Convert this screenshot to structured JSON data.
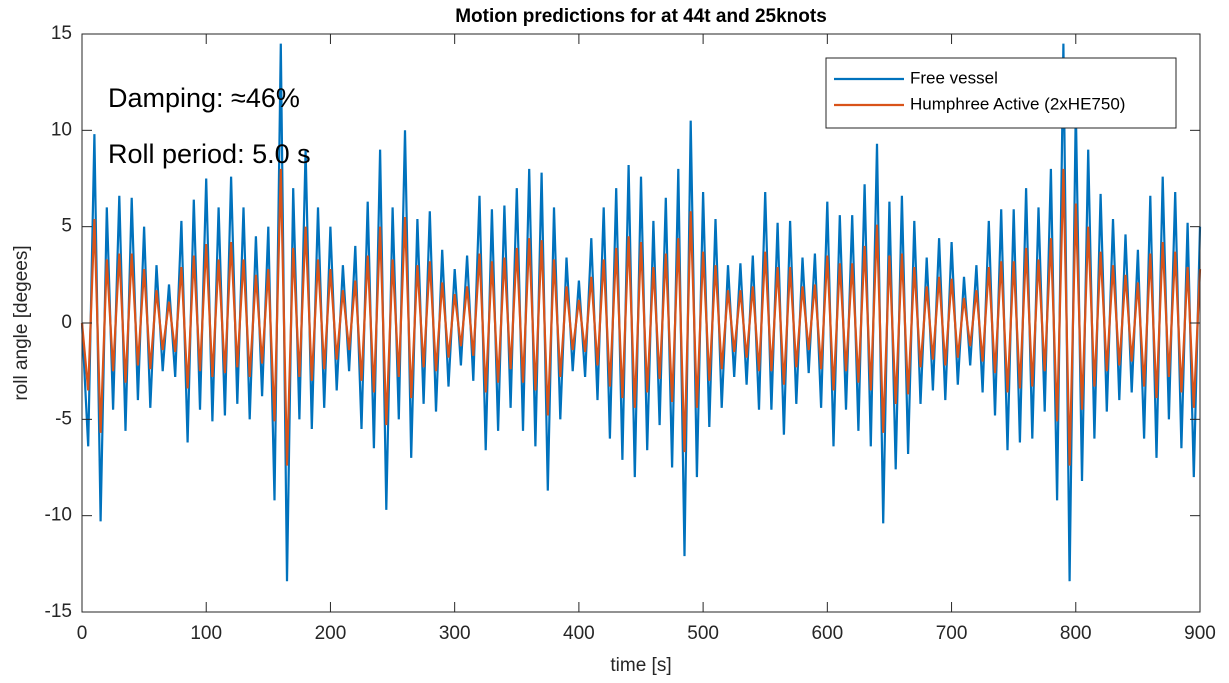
{
  "chart_data": {
    "type": "line",
    "title": "Motion predictions for  at 44t and 25knots",
    "xlabel": "time [s]",
    "ylabel": "roll angle [degees]",
    "annotations": [
      "Damping: ≈46%",
      "Roll period: 5.0 s"
    ],
    "legend": "northeast",
    "grid": false,
    "xlim": [
      0,
      900
    ],
    "xticks": [
      0,
      100,
      200,
      300,
      400,
      500,
      600,
      700,
      800,
      900
    ],
    "ylim": [
      -15,
      15
    ],
    "yticks": [
      -15,
      -10,
      -5,
      0,
      5,
      10,
      15
    ],
    "x": [
      0,
      5,
      10,
      15,
      20,
      25,
      30,
      35,
      40,
      45,
      50,
      55,
      60,
      65,
      70,
      75,
      80,
      85,
      90,
      95,
      100,
      105,
      110,
      115,
      120,
      125,
      130,
      135,
      140,
      145,
      150,
      155,
      160,
      165,
      170,
      175,
      180,
      185,
      190,
      195,
      200,
      205,
      210,
      215,
      220,
      225,
      230,
      235,
      240,
      245,
      250,
      255,
      260,
      265,
      270,
      275,
      280,
      285,
      290,
      295,
      300,
      305,
      310,
      315,
      320,
      325,
      330,
      335,
      340,
      345,
      350,
      355,
      360,
      365,
      370,
      375,
      380,
      385,
      390,
      395,
      400,
      405,
      410,
      415,
      420,
      425,
      430,
      435,
      440,
      445,
      450,
      455,
      460,
      465,
      470,
      475,
      480,
      485,
      490,
      495,
      500,
      505,
      510,
      515,
      520,
      525,
      530,
      535,
      540,
      545,
      550,
      555,
      560,
      565,
      570,
      575,
      580,
      585,
      590,
      595,
      600,
      605,
      610,
      615,
      620,
      625,
      630,
      635,
      640,
      645,
      650,
      655,
      660,
      665,
      670,
      675,
      680,
      685,
      690,
      695,
      700,
      705,
      710,
      715,
      720,
      725,
      730,
      735,
      740,
      745,
      750,
      755,
      760,
      765,
      770,
      775,
      780,
      785,
      790,
      795,
      800,
      805,
      810,
      815,
      820,
      825,
      830,
      835,
      840,
      845,
      850,
      855,
      860,
      865,
      870,
      875,
      880,
      885,
      890,
      895,
      900
    ],
    "series": [
      {
        "name": "Free vessel",
        "color": "#0072BD",
        "values": [
          0,
          -6.4,
          9.8,
          -10.3,
          6.0,
          -4.5,
          6.6,
          -5.6,
          6.5,
          -4.0,
          5.0,
          -4.4,
          3.0,
          -2.5,
          2.0,
          -2.8,
          5.3,
          -6.2,
          6.4,
          -4.5,
          7.5,
          -5.1,
          6.0,
          -4.8,
          7.6,
          -4.2,
          6.0,
          -5.0,
          4.5,
          -3.8,
          5.0,
          -9.2,
          14.5,
          -13.4,
          7.0,
          -5.0,
          9.0,
          -5.5,
          6.0,
          -4.4,
          5.0,
          -3.5,
          3.0,
          -2.5,
          4.0,
          -5.5,
          6.3,
          -6.5,
          9.0,
          -9.7,
          6.0,
          -5.0,
          10.0,
          -7.0,
          5.4,
          -4.2,
          5.8,
          -4.6,
          3.8,
          -3.3,
          2.8,
          -2.2,
          3.5,
          -3.0,
          6.6,
          -6.6,
          5.9,
          -5.6,
          6.1,
          -4.4,
          7.0,
          -5.6,
          8.0,
          -6.4,
          7.8,
          -8.7,
          6.0,
          -5.0,
          3.4,
          -2.5,
          2.2,
          -2.8,
          4.4,
          -4.0,
          6.0,
          -6.0,
          7.0,
          -7.1,
          8.2,
          -8.0,
          7.6,
          -6.6,
          5.3,
          -5.3,
          6.5,
          -7.5,
          8.0,
          -12.1,
          10.5,
          -8.0,
          6.8,
          -5.4,
          5.4,
          -4.4,
          3.0,
          -2.8,
          3.1,
          -3.2,
          3.5,
          -4.5,
          6.8,
          -4.5,
          5.2,
          -5.8,
          5.3,
          -4.2,
          3.4,
          -2.6,
          3.6,
          -4.4,
          6.3,
          -6.4,
          5.6,
          -4.5,
          5.6,
          -5.6,
          7.2,
          -6.4,
          9.3,
          -10.4,
          6.3,
          -7.6,
          6.6,
          -6.8,
          5.3,
          -4.2,
          3.4,
          -3.5,
          4.4,
          -4.0,
          4.2,
          -3.2,
          2.4,
          -2.2,
          3.0,
          -3.6,
          5.3,
          -4.8,
          5.9,
          -6.6,
          5.9,
          -6.2,
          7.0,
          -6.0,
          6.0,
          -4.6,
          8.0,
          -9.2,
          14.5,
          -13.4,
          11.2,
          -8.2,
          9.0,
          -6.0,
          6.7,
          -4.6,
          5.4,
          -4.0,
          4.6,
          -3.6,
          3.8,
          -6.0,
          6.6,
          -7.0,
          7.6,
          -5.0,
          6.8,
          -6.5,
          5.2,
          -8.0,
          5.0
        ]
      },
      {
        "name": "Humphree Active (2xHE750)",
        "color": "#D95319",
        "values": [
          0,
          -3.5,
          5.4,
          -5.7,
          3.3,
          -2.5,
          3.6,
          -3.1,
          3.6,
          -2.2,
          2.8,
          -2.4,
          1.7,
          -1.4,
          1.1,
          -1.5,
          2.9,
          -3.4,
          3.5,
          -2.5,
          4.1,
          -2.8,
          3.3,
          -2.6,
          4.2,
          -2.3,
          3.3,
          -2.8,
          2.5,
          -2.1,
          2.8,
          -5.1,
          8.0,
          -7.4,
          3.9,
          -2.8,
          5.0,
          -3.0,
          3.3,
          -2.4,
          2.8,
          -1.9,
          1.7,
          -1.4,
          2.2,
          -3.0,
          3.5,
          -3.6,
          5.0,
          -5.3,
          3.3,
          -2.8,
          5.5,
          -3.9,
          3.0,
          -2.3,
          3.2,
          -2.5,
          2.1,
          -1.8,
          1.5,
          -1.2,
          1.9,
          -1.7,
          3.6,
          -3.6,
          3.2,
          -3.1,
          3.4,
          -2.4,
          3.9,
          -3.1,
          4.4,
          -3.5,
          4.3,
          -4.8,
          3.3,
          -2.8,
          1.9,
          -1.4,
          1.2,
          -1.5,
          2.4,
          -2.2,
          3.3,
          -3.3,
          3.9,
          -3.9,
          4.5,
          -4.4,
          4.2,
          -3.6,
          2.9,
          -2.9,
          3.6,
          -4.1,
          4.4,
          -6.7,
          5.8,
          -4.4,
          3.7,
          -3.0,
          3.0,
          -2.4,
          1.7,
          -1.5,
          1.7,
          -1.8,
          1.9,
          -2.5,
          3.7,
          -2.5,
          2.9,
          -3.2,
          2.9,
          -2.3,
          1.9,
          -1.4,
          2.0,
          -2.4,
          3.5,
          -3.5,
          3.1,
          -2.5,
          3.1,
          -3.1,
          4.0,
          -3.5,
          5.1,
          -5.7,
          3.5,
          -4.2,
          3.6,
          -3.7,
          2.9,
          -2.3,
          1.9,
          -1.9,
          2.4,
          -2.2,
          2.3,
          -1.8,
          1.3,
          -1.2,
          1.7,
          -2.0,
          2.9,
          -2.6,
          3.2,
          -3.6,
          3.2,
          -3.4,
          3.9,
          -3.3,
          3.3,
          -2.5,
          4.4,
          -5.1,
          8.0,
          -7.4,
          6.2,
          -4.5,
          5.0,
          -3.3,
          3.7,
          -2.5,
          3.0,
          -2.2,
          2.5,
          -2.0,
          2.1,
          -3.3,
          3.6,
          -3.9,
          4.2,
          -2.8,
          3.7,
          -3.6,
          2.9,
          -4.4,
          2.8
        ]
      }
    ]
  }
}
